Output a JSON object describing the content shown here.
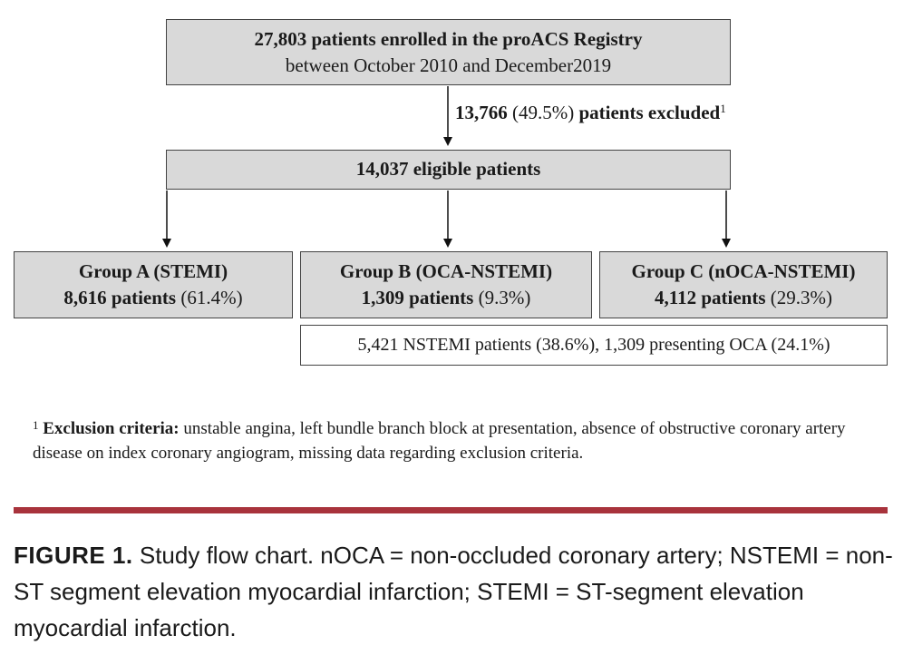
{
  "enrolled": {
    "bold": "27,803 patients enrolled in the proACS Registry",
    "sub": "between October 2010 and December2019"
  },
  "excluded": {
    "count": "13,766",
    "pct": "(49.5%)",
    "label": "patients excluded",
    "sup": "1"
  },
  "eligible": {
    "text": "14,037 eligible patients"
  },
  "groups": [
    {
      "title": "Group A (STEMI)",
      "count": "8,616 patients",
      "pct": "(61.4%)"
    },
    {
      "title": "Group B (OCA-NSTEMI)",
      "count": "1,309 patients",
      "pct": "(9.3%)"
    },
    {
      "title": "Group C (nOCA-NSTEMI)",
      "count": "4,112 patients",
      "pct": "(29.3%)"
    }
  ],
  "nstemi": {
    "text": "5,421 NSTEMI patients (38.6%), 1,309 presenting OCA (24.1%)"
  },
  "footnote": {
    "sup": "1",
    "label": "Exclusion criteria:",
    "text": " unstable angina, left bundle branch block at presentation, absence of obstructive coronary artery disease on index coronary angiogram, missing data regarding exclusion criteria."
  },
  "caption": {
    "label": "FIGURE 1.",
    "text": " Study flow chart. nOCA = non-occluded coronary artery; NSTEMI = non-ST segment elevation myocardial infarction; STEMI = ST-segment elevation myocardial infarction."
  },
  "colors": {
    "box_fill": "#d9d9d9",
    "divider": "#a8333c"
  }
}
